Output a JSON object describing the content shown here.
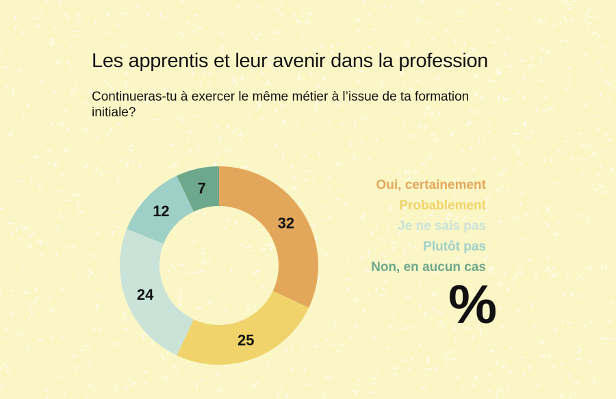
{
  "header": {
    "title": "Les apprentis et leur avenir dans la profession",
    "subtitle": "Continueras-tu à exercer le même métier à l’issue de ta formation initiale?"
  },
  "unit": "%",
  "colors": {
    "background": "#fbf6c6",
    "oui": "#e3a75c",
    "probablement": "#f0d36b",
    "ne_sais_pas": "#c9e3d9",
    "plutot_pas": "#9fd0c7",
    "non": "#6da88c"
  },
  "chart_data": {
    "type": "pie",
    "donut": true,
    "title": "Les apprentis et leur avenir dans la profession",
    "subtitle": "Continueras-tu à exercer le même métier à l’issue de ta formation initiale?",
    "unit": "%",
    "legend_position": "right",
    "categories": [
      "Oui, certainement",
      "Probablement",
      "Je ne sais pas",
      "Plutôt pas",
      "Non, en aucun cas"
    ],
    "values": [
      32,
      25,
      24,
      12,
      7
    ],
    "colors": [
      "#e3a75c",
      "#f0d36b",
      "#c9e3d9",
      "#9fd0c7",
      "#6da88c"
    ]
  }
}
